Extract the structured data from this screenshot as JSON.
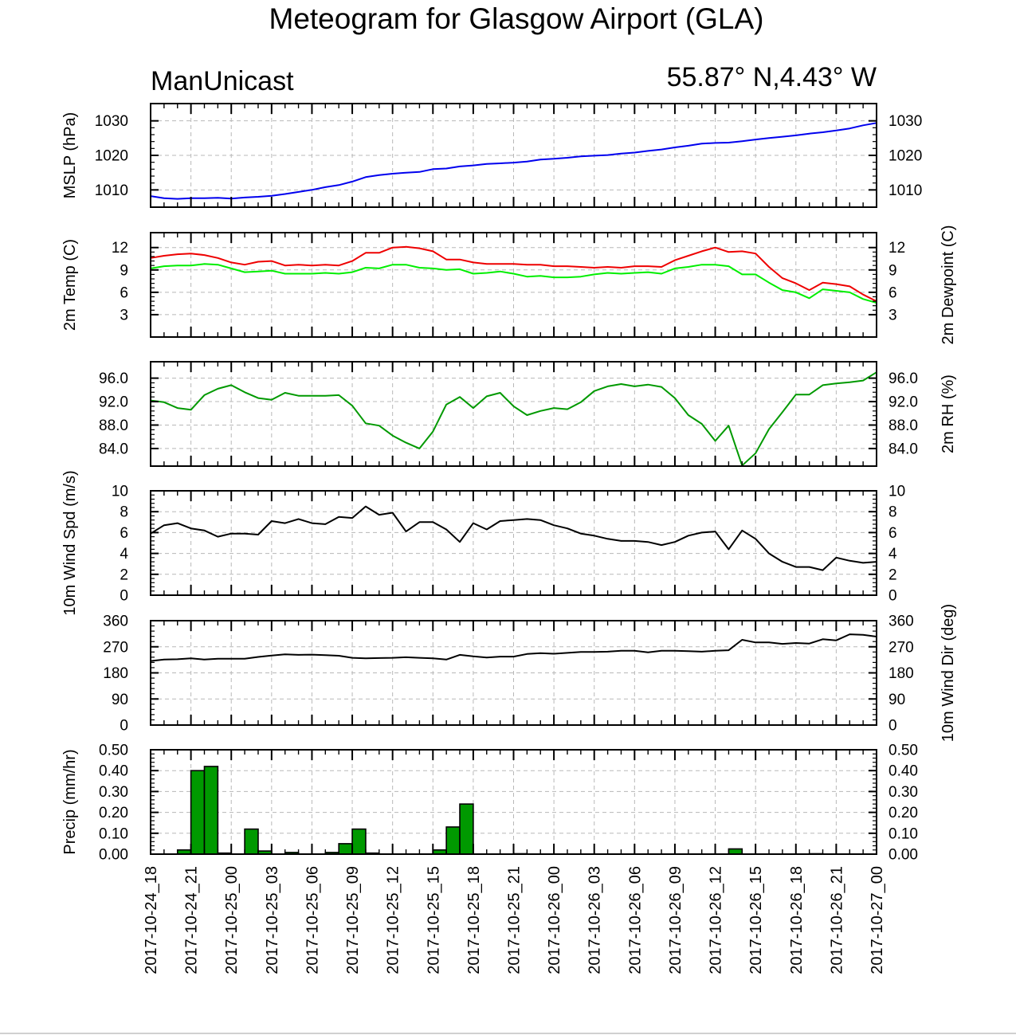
{
  "title": "Meteogram for Glasgow Airport (GLA)",
  "subtitle_left": "ManUnicast",
  "subtitle_right": "55.87° N,4.43° W",
  "chart_data": {
    "type": "line",
    "x": [
      "2017-10-24_18",
      "2017-10-24_19",
      "2017-10-24_20",
      "2017-10-24_21",
      "2017-10-24_22",
      "2017-10-24_23",
      "2017-10-25_00",
      "2017-10-25_01",
      "2017-10-25_02",
      "2017-10-25_03",
      "2017-10-25_04",
      "2017-10-25_05",
      "2017-10-25_06",
      "2017-10-25_07",
      "2017-10-25_08",
      "2017-10-25_09",
      "2017-10-25_10",
      "2017-10-25_11",
      "2017-10-25_12",
      "2017-10-25_13",
      "2017-10-25_14",
      "2017-10-25_15",
      "2017-10-25_16",
      "2017-10-25_17",
      "2017-10-25_18",
      "2017-10-25_19",
      "2017-10-25_20",
      "2017-10-25_21",
      "2017-10-25_22",
      "2017-10-25_23",
      "2017-10-26_00",
      "2017-10-26_01",
      "2017-10-26_02",
      "2017-10-26_03",
      "2017-10-26_04",
      "2017-10-26_05",
      "2017-10-26_06",
      "2017-10-26_07",
      "2017-10-26_08",
      "2017-10-26_09",
      "2017-10-26_10",
      "2017-10-26_11",
      "2017-10-26_12",
      "2017-10-26_13",
      "2017-10-26_14",
      "2017-10-26_15",
      "2017-10-26_16",
      "2017-10-26_17",
      "2017-10-26_18",
      "2017-10-26_19",
      "2017-10-26_20",
      "2017-10-26_21",
      "2017-10-26_22",
      "2017-10-26_23",
      "2017-10-27_00"
    ],
    "x_tick_labels": [
      "2017-10-24_18",
      "2017-10-24_21",
      "2017-10-25_00",
      "2017-10-25_03",
      "2017-10-25_06",
      "2017-10-25_09",
      "2017-10-25_12",
      "2017-10-25_15",
      "2017-10-25_18",
      "2017-10-25_21",
      "2017-10-26_00",
      "2017-10-26_03",
      "2017-10-26_06",
      "2017-10-26_09",
      "2017-10-26_12",
      "2017-10-26_15",
      "2017-10-26_18",
      "2017-10-26_21",
      "2017-10-27_00"
    ],
    "grid": true,
    "panels": [
      {
        "name": "mslp",
        "type": "line",
        "ylabel_left": "MSLP (hPa)",
        "ylabel_right": "",
        "ylim": [
          1005,
          1035
        ],
        "yticks": [
          1010,
          1020,
          1030
        ],
        "ytick_labels": [
          "1010",
          "1020",
          "1030"
        ],
        "right_tick_labels": true,
        "series": [
          {
            "name": "",
            "color": "#0000ee",
            "values": [
              1008.2,
              1007.6,
              1007.4,
              1007.6,
              1007.6,
              1007.7,
              1007.5,
              1007.8,
              1008.0,
              1008.3,
              1008.8,
              1009.4,
              1010.0,
              1010.8,
              1011.4,
              1012.4,
              1013.7,
              1014.3,
              1014.7,
              1015.0,
              1015.2,
              1016.0,
              1016.2,
              1016.8,
              1017.1,
              1017.5,
              1017.7,
              1017.9,
              1018.2,
              1018.8,
              1019.0,
              1019.3,
              1019.7,
              1019.9,
              1020.1,
              1020.5,
              1020.8,
              1021.3,
              1021.7,
              1022.3,
              1022.8,
              1023.4,
              1023.6,
              1023.7,
              1024.1,
              1024.6,
              1025.0,
              1025.4,
              1025.8,
              1026.3,
              1026.7,
              1027.2,
              1027.8,
              1028.7,
              1029.4
            ]
          }
        ]
      },
      {
        "name": "temp",
        "type": "line",
        "ylabel_left": "2m Temp (C)",
        "ylabel_right": "2m Dewpoint (C)",
        "ylim": [
          0,
          14
        ],
        "yticks": [
          3,
          6,
          9,
          12
        ],
        "ytick_labels": [
          "3",
          "6",
          "9",
          "12"
        ],
        "right_tick_labels": true,
        "series": [
          {
            "name": "",
            "color": "#ee0000",
            "values": [
              10.6,
              10.9,
              11.1,
              11.2,
              11.0,
              10.6,
              10.0,
              9.7,
              10.1,
              10.2,
              9.6,
              9.7,
              9.6,
              9.7,
              9.6,
              10.2,
              11.3,
              11.3,
              12.0,
              12.1,
              11.9,
              11.5,
              10.4,
              10.4,
              10.0,
              9.8,
              9.8,
              9.8,
              9.7,
              9.7,
              9.5,
              9.5,
              9.4,
              9.3,
              9.4,
              9.3,
              9.5,
              9.5,
              9.4,
              10.3,
              10.9,
              11.5,
              12.0,
              11.4,
              11.5,
              11.2,
              9.4,
              7.9,
              7.2,
              6.3,
              7.3,
              7.1,
              6.8,
              5.7,
              4.8
            ]
          },
          {
            "name": "",
            "color": "#00ee00",
            "values": [
              9.2,
              9.5,
              9.6,
              9.6,
              9.8,
              9.7,
              9.2,
              8.7,
              8.8,
              8.9,
              8.5,
              8.5,
              8.5,
              8.6,
              8.5,
              8.7,
              9.3,
              9.2,
              9.7,
              9.7,
              9.3,
              9.2,
              9.0,
              9.1,
              8.5,
              8.6,
              8.8,
              8.5,
              8.1,
              8.2,
              8.0,
              8.0,
              8.1,
              8.4,
              8.6,
              8.5,
              8.6,
              8.7,
              8.5,
              9.2,
              9.4,
              9.7,
              9.7,
              9.5,
              8.4,
              8.4,
              7.3,
              6.3,
              6.0,
              5.2,
              6.4,
              6.2,
              6.0,
              5.1,
              4.6
            ]
          }
        ]
      },
      {
        "name": "rh",
        "type": "line",
        "ylabel_left": "",
        "ylabel_right": "2m RH (%)",
        "ylim": [
          81,
          98.8
        ],
        "yticks": [
          84,
          88,
          92,
          96
        ],
        "ytick_labels": [
          "84.0",
          "88.0",
          "92.0",
          "96.0"
        ],
        "right_tick_labels": true,
        "series": [
          {
            "name": "",
            "color": "#009900",
            "values": [
              92.2,
              91.9,
              90.9,
              90.6,
              93.1,
              94.2,
              94.8,
              93.6,
              92.6,
              92.3,
              93.5,
              93.0,
              93.0,
              93.0,
              93.1,
              91.3,
              88.3,
              87.9,
              86.2,
              85.0,
              84.0,
              86.9,
              91.5,
              92.8,
              90.9,
              92.9,
              93.5,
              91.2,
              89.7,
              90.4,
              90.9,
              90.7,
              91.9,
              93.8,
              94.6,
              95.0,
              94.6,
              94.9,
              94.5,
              92.6,
              89.7,
              88.2,
              85.3,
              87.9,
              81.1,
              83.2,
              87.3,
              90.2,
              93.2,
              93.2,
              94.8,
              95.1,
              95.3,
              95.6,
              97.0
            ]
          }
        ]
      },
      {
        "name": "wind_speed",
        "type": "line",
        "ylabel_left": "10m Wind Spd (m/s)",
        "ylabel_right": "",
        "ylim": [
          0,
          10
        ],
        "yticks": [
          0,
          2,
          4,
          6,
          8,
          10
        ],
        "ytick_labels": [
          "0",
          "2",
          "4",
          "6",
          "8",
          "10"
        ],
        "right_tick_labels": true,
        "series": [
          {
            "name": "",
            "color": "#000000",
            "values": [
              5.9,
              6.7,
              6.9,
              6.4,
              6.2,
              5.6,
              5.9,
              5.9,
              5.8,
              7.1,
              6.9,
              7.3,
              6.9,
              6.8,
              7.5,
              7.4,
              8.5,
              7.7,
              7.9,
              6.1,
              7.0,
              7.0,
              6.3,
              5.1,
              6.9,
              6.3,
              7.1,
              7.2,
              7.3,
              7.2,
              6.7,
              6.4,
              5.9,
              5.7,
              5.4,
              5.2,
              5.2,
              5.1,
              4.8,
              5.1,
              5.7,
              6.0,
              6.1,
              4.4,
              6.2,
              5.4,
              4.0,
              3.2,
              2.7,
              2.7,
              2.4,
              3.6,
              3.3,
              3.1,
              3.2
            ]
          }
        ]
      },
      {
        "name": "wind_dir",
        "type": "line",
        "ylabel_left": "",
        "ylabel_right": "10m Wind Dir (deg)",
        "ylim": [
          0,
          360
        ],
        "yticks": [
          0,
          90,
          180,
          270,
          360
        ],
        "ytick_labels": [
          "0",
          "90",
          "180",
          "270",
          "360"
        ],
        "right_tick_labels": true,
        "series": [
          {
            "name": "",
            "color": "#000000",
            "values": [
              221,
              226,
              227,
              230,
              226,
              229,
              229,
              229,
              235,
              240,
              244,
              242,
              243,
              241,
              239,
              232,
              230,
              231,
              232,
              234,
              232,
              230,
              226,
              242,
              237,
              233,
              236,
              236,
              245,
              248,
              246,
              249,
              252,
              252,
              253,
              256,
              256,
              251,
              256,
              256,
              255,
              253,
              256,
              258,
              294,
              285,
              285,
              280,
              283,
              281,
              296,
              292,
              313,
              311,
              305
            ]
          }
        ]
      },
      {
        "name": "precip",
        "type": "bar",
        "ylabel_left": "Precip (mm/hr)",
        "ylabel_right": "",
        "ylim": [
          0,
          0.5
        ],
        "yticks": [
          0,
          0.1,
          0.2,
          0.3,
          0.4,
          0.5
        ],
        "ytick_labels": [
          "0.00",
          "0.10",
          "0.20",
          "0.30",
          "0.40",
          "0.50"
        ],
        "right_tick_labels": true,
        "bar_color": "#009900",
        "values": [
          0,
          0,
          0.02,
          0.4,
          0.42,
          0.005,
          0,
          0.12,
          0.015,
          0,
          0.008,
          0,
          0,
          0.008,
          0.05,
          0.12,
          0.005,
          0,
          0,
          0,
          0,
          0.02,
          0.13,
          0.24,
          0,
          0,
          0,
          0.002,
          0,
          0,
          0,
          0,
          0,
          0,
          0,
          0,
          0,
          0,
          0,
          0,
          0,
          0,
          0,
          0.025,
          0,
          0,
          0,
          0,
          0,
          0.002,
          0,
          0,
          0,
          0
        ]
      }
    ]
  }
}
